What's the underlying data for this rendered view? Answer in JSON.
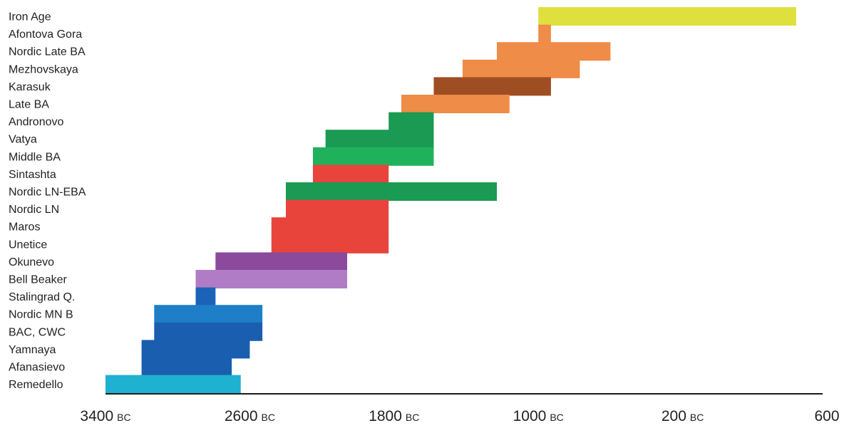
{
  "chart_data": {
    "type": "bar",
    "orientation": "horizontal-range",
    "title": "",
    "xlabel": "",
    "ylabel": "",
    "xlim": [
      -3400,
      600
    ],
    "grid": false,
    "legend": "none",
    "x_ticks": [
      {
        "value": -3400,
        "num": "3400",
        "era": "BC"
      },
      {
        "value": -2600,
        "num": "2600",
        "era": "BC"
      },
      {
        "value": -1800,
        "num": "1800",
        "era": "BC"
      },
      {
        "value": -1000,
        "num": "1000",
        "era": "BC"
      },
      {
        "value": -200,
        "num": "200",
        "era": "BC"
      },
      {
        "value": 600,
        "num": "600",
        "era": ""
      }
    ],
    "categories": [
      "Iron Age",
      "Afontova Gora",
      "Nordic Late BA",
      "Mezhovskaya",
      "Karasuk",
      "Late BA",
      "Andronovo",
      "Vatya",
      "Middle BA",
      "Sintashta",
      "Nordic LN-EBA",
      "Nordic LN",
      "Maros",
      "Unetice",
      "Okunevo",
      "Bell Beaker",
      "Stalingrad Q.",
      "Nordic MN B",
      "BAC, CWC",
      "Yamnaya",
      "Afanasievo",
      "Remedello"
    ],
    "ranges": [
      {
        "label": "Iron Age",
        "segments": [
          {
            "start": -1000,
            "end": 430,
            "color": "#dfe03e"
          }
        ]
      },
      {
        "label": "Afontova Gora",
        "segments": [
          {
            "start": -1000,
            "end": -930,
            "color": "#ee8c48"
          }
        ]
      },
      {
        "label": "Nordic Late BA",
        "segments": [
          {
            "start": -1230,
            "end": -600,
            "color": "#ee8c48"
          }
        ]
      },
      {
        "label": "Mezhovskaya",
        "segments": [
          {
            "start": -1420,
            "end": -770,
            "color": "#ee8c48"
          }
        ]
      },
      {
        "label": "Karasuk",
        "segments": [
          {
            "start": -1580,
            "end": -930,
            "color": "#9e4e22"
          }
        ]
      },
      {
        "label": "Late BA",
        "segments": [
          {
            "start": -1760,
            "end": -1160,
            "color": "#ee8c48"
          }
        ]
      },
      {
        "label": "Andronovo",
        "segments": [
          {
            "start": -1830,
            "end": -1580,
            "color": "#1a9a52"
          }
        ]
      },
      {
        "label": "Vatya",
        "segments": [
          {
            "start": -2180,
            "end": -1580,
            "color": "#1a9a52"
          }
        ]
      },
      {
        "label": "Middle BA",
        "segments": [
          {
            "start": -2250,
            "end": -1580,
            "color": "#20b25a"
          }
        ]
      },
      {
        "label": "Sintashta",
        "segments": [
          {
            "start": -2250,
            "end": -1830,
            "color": "#e8443c"
          }
        ]
      },
      {
        "label": "Nordic LN-EBA",
        "segments": [
          {
            "start": -2400,
            "end": -1230,
            "color": "#1a9a52"
          }
        ]
      },
      {
        "label": "Nordic LN",
        "segments": [
          {
            "start": -2400,
            "end": -1830,
            "color": "#e8443c"
          }
        ]
      },
      {
        "label": "Maros",
        "segments": [
          {
            "start": -2480,
            "end": -1830,
            "color": "#e8443c"
          }
        ]
      },
      {
        "label": "Unetice",
        "segments": [
          {
            "start": -2480,
            "end": -1830,
            "color": "#e8443c"
          }
        ]
      },
      {
        "label": "Okunevo",
        "segments": [
          {
            "start": -2790,
            "end": -2060,
            "color": "#8b4a9c"
          }
        ]
      },
      {
        "label": "Bell Beaker",
        "segments": [
          {
            "start": -2900,
            "end": -2060,
            "color": "#b07cc6"
          }
        ]
      },
      {
        "label": "Stalingrad Q.",
        "segments": [
          {
            "start": -2900,
            "end": -2790,
            "color": "#1a63b8"
          }
        ]
      },
      {
        "label": "Nordic MN B",
        "segments": [
          {
            "start": -3130,
            "end": -2530,
            "color": "#1e7ec8"
          }
        ]
      },
      {
        "label": "BAC, CWC",
        "segments": [
          {
            "start": -3130,
            "end": -2530,
            "color": "#1a5eb0"
          }
        ]
      },
      {
        "label": "Yamnaya",
        "segments": [
          {
            "start": -3200,
            "end": -2600,
            "color": "#1a5eb0"
          }
        ]
      },
      {
        "label": "Afanasievo",
        "segments": [
          {
            "start": -3200,
            "end": -2700,
            "color": "#1a5eb0"
          }
        ]
      },
      {
        "label": "Remedello",
        "segments": [
          {
            "start": -3400,
            "end": -2650,
            "color": "#1eb1d0"
          }
        ]
      }
    ]
  }
}
